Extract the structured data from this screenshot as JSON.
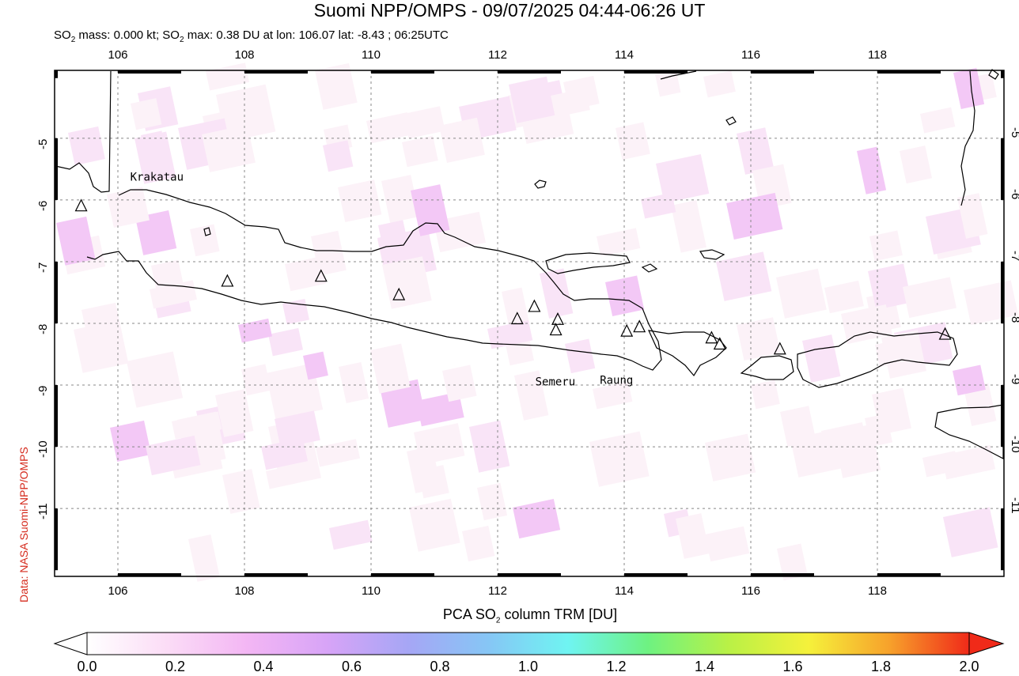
{
  "title": "Suomi NPP/OMPS - 09/07/2025 04:44-06:26 UT",
  "subtitle": {
    "prefix": "SO",
    "sub": "2",
    "mass_text": " mass: 0.000 kt; SO",
    "sub2": "2",
    "rest": " max: 0.38 DU at lon: 106.07 lat: -8.43 ; 06:25UTC"
  },
  "credit": "Data: NASA Suomi-NPP/OMPS",
  "map": {
    "lon_range": [
      105,
      120
    ],
    "lat_range": [
      -12.1,
      -3.9
    ],
    "lon_ticks": [
      "106",
      "108",
      "110",
      "112",
      "114",
      "116",
      "118"
    ],
    "lat_ticks": [
      "-5",
      "-6",
      "-7",
      "-8",
      "-9",
      "-10",
      "-11"
    ],
    "volcanoes": [
      {
        "name": "Krakatau",
        "lon": 105.42,
        "lat": -6.1
      },
      {
        "name": "",
        "lon": 107.73,
        "lat": -7.32
      },
      {
        "name": "",
        "lon": 109.21,
        "lat": -7.24
      },
      {
        "name": "",
        "lon": 110.44,
        "lat": -7.54
      },
      {
        "name": "",
        "lon": 112.31,
        "lat": -7.93
      },
      {
        "name": "",
        "lon": 112.58,
        "lat": -7.73
      },
      {
        "name": "",
        "lon": 112.95,
        "lat": -7.94
      },
      {
        "name": "Semeru",
        "lon": 112.92,
        "lat": -8.11
      },
      {
        "name": "",
        "lon": 114.04,
        "lat": -8.13
      },
      {
        "name": "Raung",
        "lon": 114.24,
        "lat": -8.06
      },
      {
        "name": "",
        "lon": 115.38,
        "lat": -8.24
      },
      {
        "name": "",
        "lon": 115.51,
        "lat": -8.34
      },
      {
        "name": "",
        "lon": 116.46,
        "lat": -8.42
      },
      {
        "name": "",
        "lon": 119.07,
        "lat": -8.18
      }
    ]
  },
  "colorbar": {
    "title_prefix": "PCA SO",
    "title_sub": "2",
    "title_suffix": " column TRM [DU]",
    "ticks": [
      "0.0",
      "0.2",
      "0.4",
      "0.6",
      "0.8",
      "1.0",
      "1.2",
      "1.4",
      "1.6",
      "1.8",
      "2.0"
    ],
    "colors": [
      "#ffffff",
      "#fbdcf6",
      "#f3b6f4",
      "#d7a4f7",
      "#a6a6f5",
      "#86c6f5",
      "#6ff4f2",
      "#6ef281",
      "#b9f146",
      "#f5f13b",
      "#f7a22b",
      "#f02a19"
    ]
  }
}
